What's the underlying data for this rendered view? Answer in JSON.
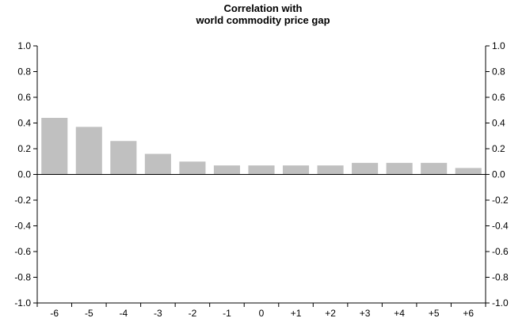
{
  "chart_data": {
    "type": "bar",
    "title": [
      "Correlation with",
      "world commodity price gap"
    ],
    "xlabel": "",
    "ylabel": "",
    "categories": [
      "-6",
      "-5",
      "-4",
      "-3",
      "-2",
      "-1",
      "0",
      "+1",
      "+2",
      "+3",
      "+4",
      "+5",
      "+6"
    ],
    "values": [
      0.44,
      0.37,
      0.26,
      0.16,
      0.1,
      0.07,
      0.07,
      0.07,
      0.07,
      0.09,
      0.09,
      0.09,
      0.05
    ],
    "ylim": [
      -1.0,
      1.0
    ],
    "yticks": [
      "1.0",
      "0.8",
      "0.6",
      "0.4",
      "0.2",
      "0.0",
      "-0.2",
      "-0.4",
      "-0.6",
      "-0.8",
      "-1.0"
    ],
    "ytick_values": [
      1.0,
      0.8,
      0.6,
      0.4,
      0.2,
      0.0,
      -0.2,
      -0.4,
      -0.6,
      -0.8,
      -1.0
    ],
    "y_axis_both_sides": true,
    "grid": false,
    "legend": "none",
    "bar_color": "#c0c0c0",
    "axis_color": "#000000"
  }
}
